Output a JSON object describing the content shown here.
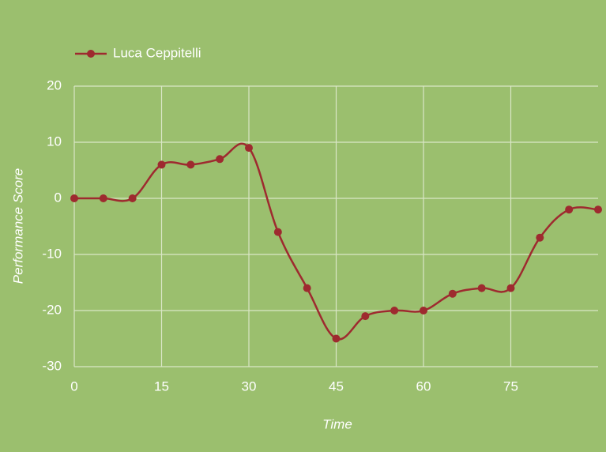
{
  "chart_data": {
    "type": "line",
    "x": [
      0,
      5,
      10,
      15,
      20,
      25,
      30,
      35,
      40,
      45,
      50,
      55,
      60,
      65,
      70,
      75,
      80,
      85,
      90
    ],
    "series": [
      {
        "name": "Luca Ceppitelli",
        "color": "#9e2a2f",
        "values": [
          0,
          0,
          0,
          6,
          6,
          7,
          9,
          -6,
          -16,
          -25,
          -21,
          -20,
          -20,
          -17,
          -16,
          -16,
          -7,
          -2,
          -2
        ]
      }
    ],
    "xlabel": "Time",
    "ylabel": "Performance Score",
    "xlim": [
      0,
      90
    ],
    "xticks": [
      0,
      15,
      30,
      45,
      60,
      75
    ],
    "ylim": [
      -30,
      20
    ],
    "yticks": [
      -30,
      -20,
      -10,
      0,
      10,
      20
    ],
    "grid": true,
    "legend": "top-left"
  }
}
